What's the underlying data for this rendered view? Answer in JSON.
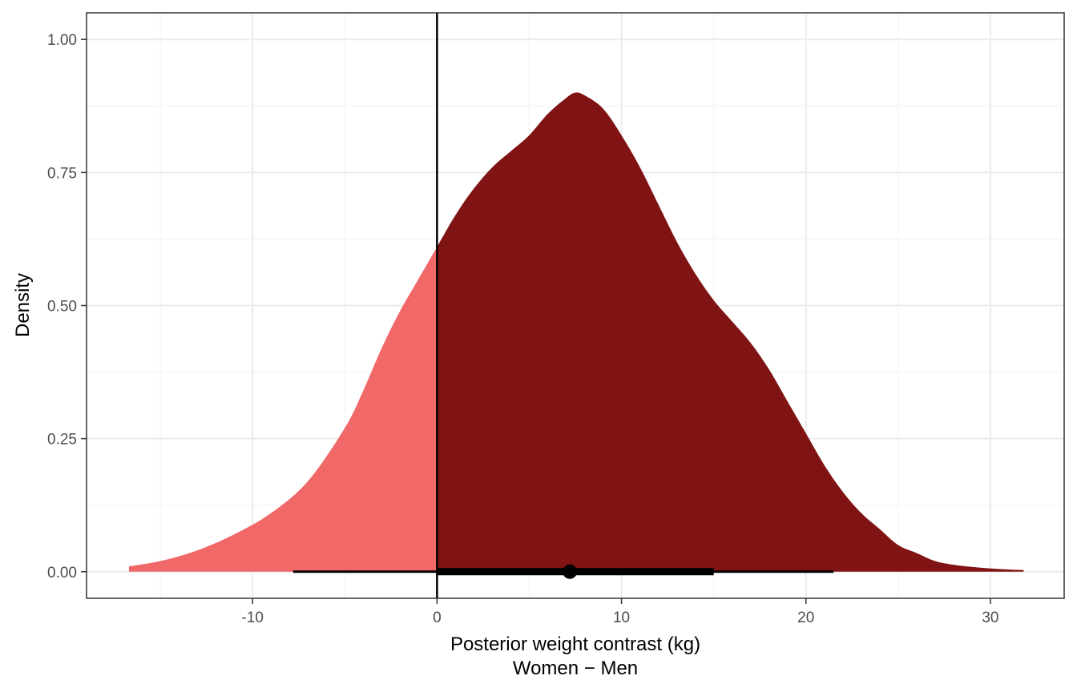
{
  "chart_data": {
    "type": "area",
    "title": "",
    "xlabel": "Posterior weight contrast (kg)",
    "xlabel_sub": "Women − Men",
    "ylabel": "Density",
    "xlim": [
      -19,
      34
    ],
    "ylim": [
      -0.05,
      1.05
    ],
    "x_ticks": [
      -10,
      0,
      10,
      20,
      30
    ],
    "x_tick_labels": [
      "-10",
      "0",
      "10",
      "20",
      "30"
    ],
    "y_ticks": [
      0,
      0.25,
      0.5,
      0.75,
      1.0
    ],
    "y_tick_labels": [
      "0.00",
      "0.25",
      "0.50",
      "0.75",
      "1.00"
    ],
    "x_minor_ticks": [
      -15,
      -5,
      5,
      15,
      25
    ],
    "y_minor_ticks": [
      0.125,
      0.375,
      0.625,
      0.875
    ],
    "grid": true,
    "reference_line_x": 0,
    "density": {
      "x": [
        -16.7,
        -15,
        -13,
        -11,
        -9,
        -7,
        -5,
        -4,
        -3,
        -2,
        -1,
        0,
        1,
        2,
        3,
        4,
        5,
        6,
        7,
        7.5,
        8,
        9,
        10,
        11,
        12,
        13,
        14,
        15,
        16,
        17,
        18,
        19,
        20,
        21,
        22,
        23,
        24,
        25,
        26,
        27,
        28,
        29,
        30,
        31,
        31.8
      ],
      "y": [
        0.01,
        0.02,
        0.04,
        0.07,
        0.11,
        0.17,
        0.27,
        0.34,
        0.42,
        0.49,
        0.55,
        0.61,
        0.67,
        0.72,
        0.76,
        0.79,
        0.82,
        0.86,
        0.89,
        0.9,
        0.895,
        0.87,
        0.82,
        0.76,
        0.69,
        0.62,
        0.56,
        0.51,
        0.47,
        0.43,
        0.38,
        0.32,
        0.26,
        0.2,
        0.15,
        0.11,
        0.08,
        0.05,
        0.035,
        0.02,
        0.013,
        0.009,
        0.006,
        0.004,
        0.003
      ]
    },
    "split_at": 0,
    "fill_below_split": "#f06868",
    "fill_above_split": "#801313",
    "point_estimate": 7.2,
    "interval_inner": [
      0,
      15
    ],
    "interval_outer": [
      -7.8,
      21.5
    ]
  }
}
